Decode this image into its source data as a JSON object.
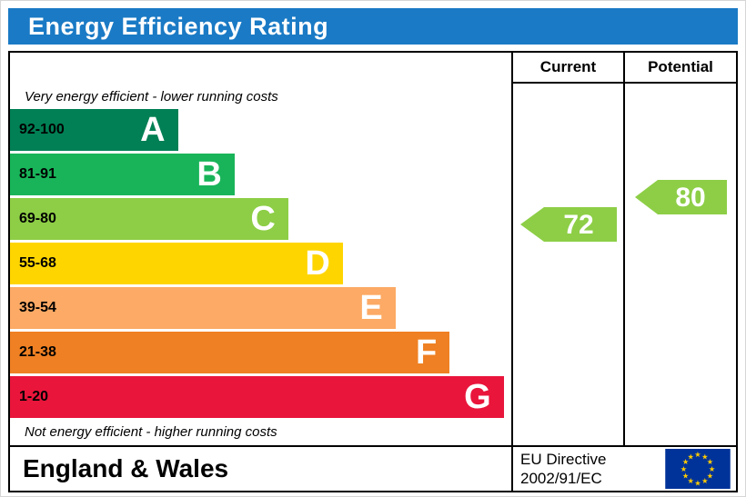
{
  "title": "Energy Efficiency Rating",
  "header": {
    "current_label": "Current",
    "potential_label": "Potential"
  },
  "notes": {
    "top": "Very energy efficient - lower running costs",
    "bottom": "Not energy efficient - higher running costs"
  },
  "footer": {
    "region": "England & Wales",
    "directive_line1": "EU Directive",
    "directive_line2": "2002/91/EC",
    "flag_icon": "eu-flag"
  },
  "colors": {
    "title_bg": "#1a7ac5",
    "title_text": "#ffffff",
    "border": "#000000",
    "eu_flag_bg": "#003399",
    "eu_flag_star": "#ffcc00"
  },
  "chart_data": {
    "type": "bar",
    "title": "Energy Efficiency Rating",
    "scale": [
      1,
      100
    ],
    "bands": [
      {
        "letter": "A",
        "range": "92-100",
        "color": "#008054",
        "width_pct": 33.5
      },
      {
        "letter": "B",
        "range": "81-91",
        "color": "#19b459",
        "width_pct": 44.8
      },
      {
        "letter": "C",
        "range": "69-80",
        "color": "#8dce46",
        "width_pct": 55.5
      },
      {
        "letter": "D",
        "range": "55-68",
        "color": "#ffd500",
        "width_pct": 66.4
      },
      {
        "letter": "E",
        "range": "39-54",
        "color": "#fcaa65",
        "width_pct": 76.9
      },
      {
        "letter": "F",
        "range": "21-38",
        "color": "#ef8023",
        "width_pct": 87.7
      },
      {
        "letter": "G",
        "range": "1-20",
        "color": "#e9153b",
        "width_pct": 98.5
      }
    ],
    "current": {
      "value": 72,
      "band": "C",
      "color": "#8dce46"
    },
    "potential": {
      "value": 80,
      "band": "C",
      "color": "#8dce46"
    }
  }
}
